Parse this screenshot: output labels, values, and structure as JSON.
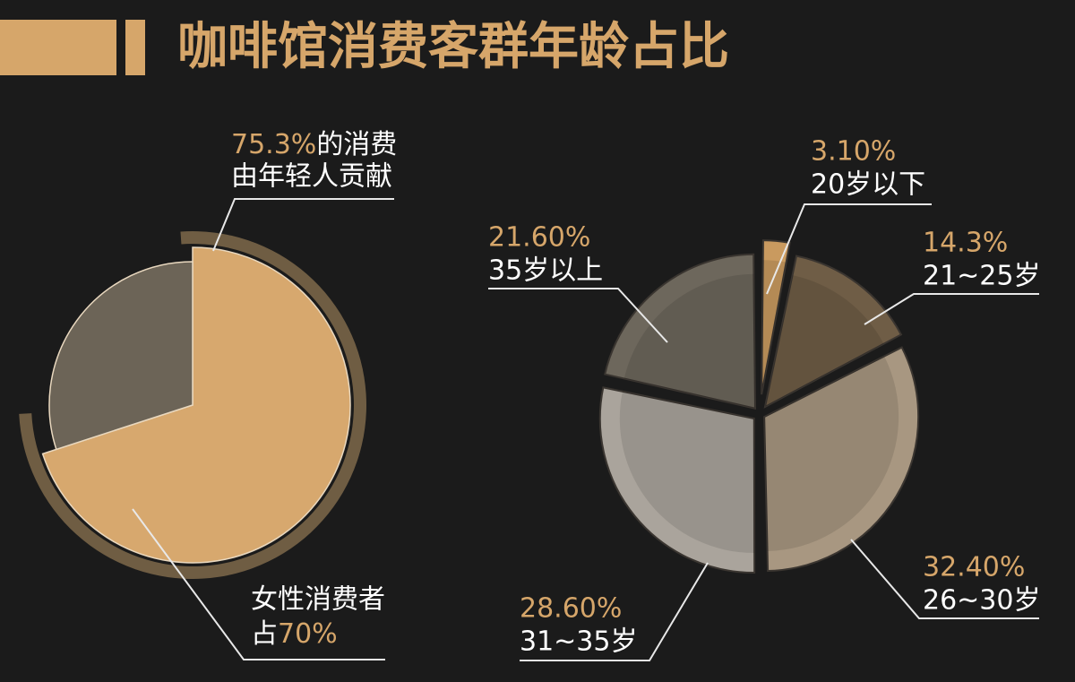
{
  "title": "咖啡馆消费客群年龄占比",
  "chart_data": [
    {
      "type": "pie",
      "slices": [
        {
          "name": "女性消费者",
          "prefix": "占",
          "value": 70,
          "label": "70%",
          "color": "#d7a86e"
        },
        {
          "value": 30,
          "color": "#6c6457"
        }
      ],
      "ring": {
        "value": 75.3,
        "label": "75.3%",
        "text": "的消费",
        "text2": "由年轻人贡献",
        "color": "#8c7452"
      }
    },
    {
      "type": "pie",
      "categories": [
        "20岁以下",
        "21~25岁",
        "26~30岁",
        "31~35岁",
        "35岁以上"
      ],
      "values": [
        3.1,
        14.3,
        32.4,
        28.6,
        21.6
      ],
      "value_labels": [
        "3.10%",
        "14.3%",
        "32.40%",
        "28.60%",
        "21.60%"
      ],
      "colors": [
        "#c99a5f",
        "#6f5d46",
        "#a89781",
        "#aaa49c",
        "#6d675c"
      ]
    }
  ]
}
